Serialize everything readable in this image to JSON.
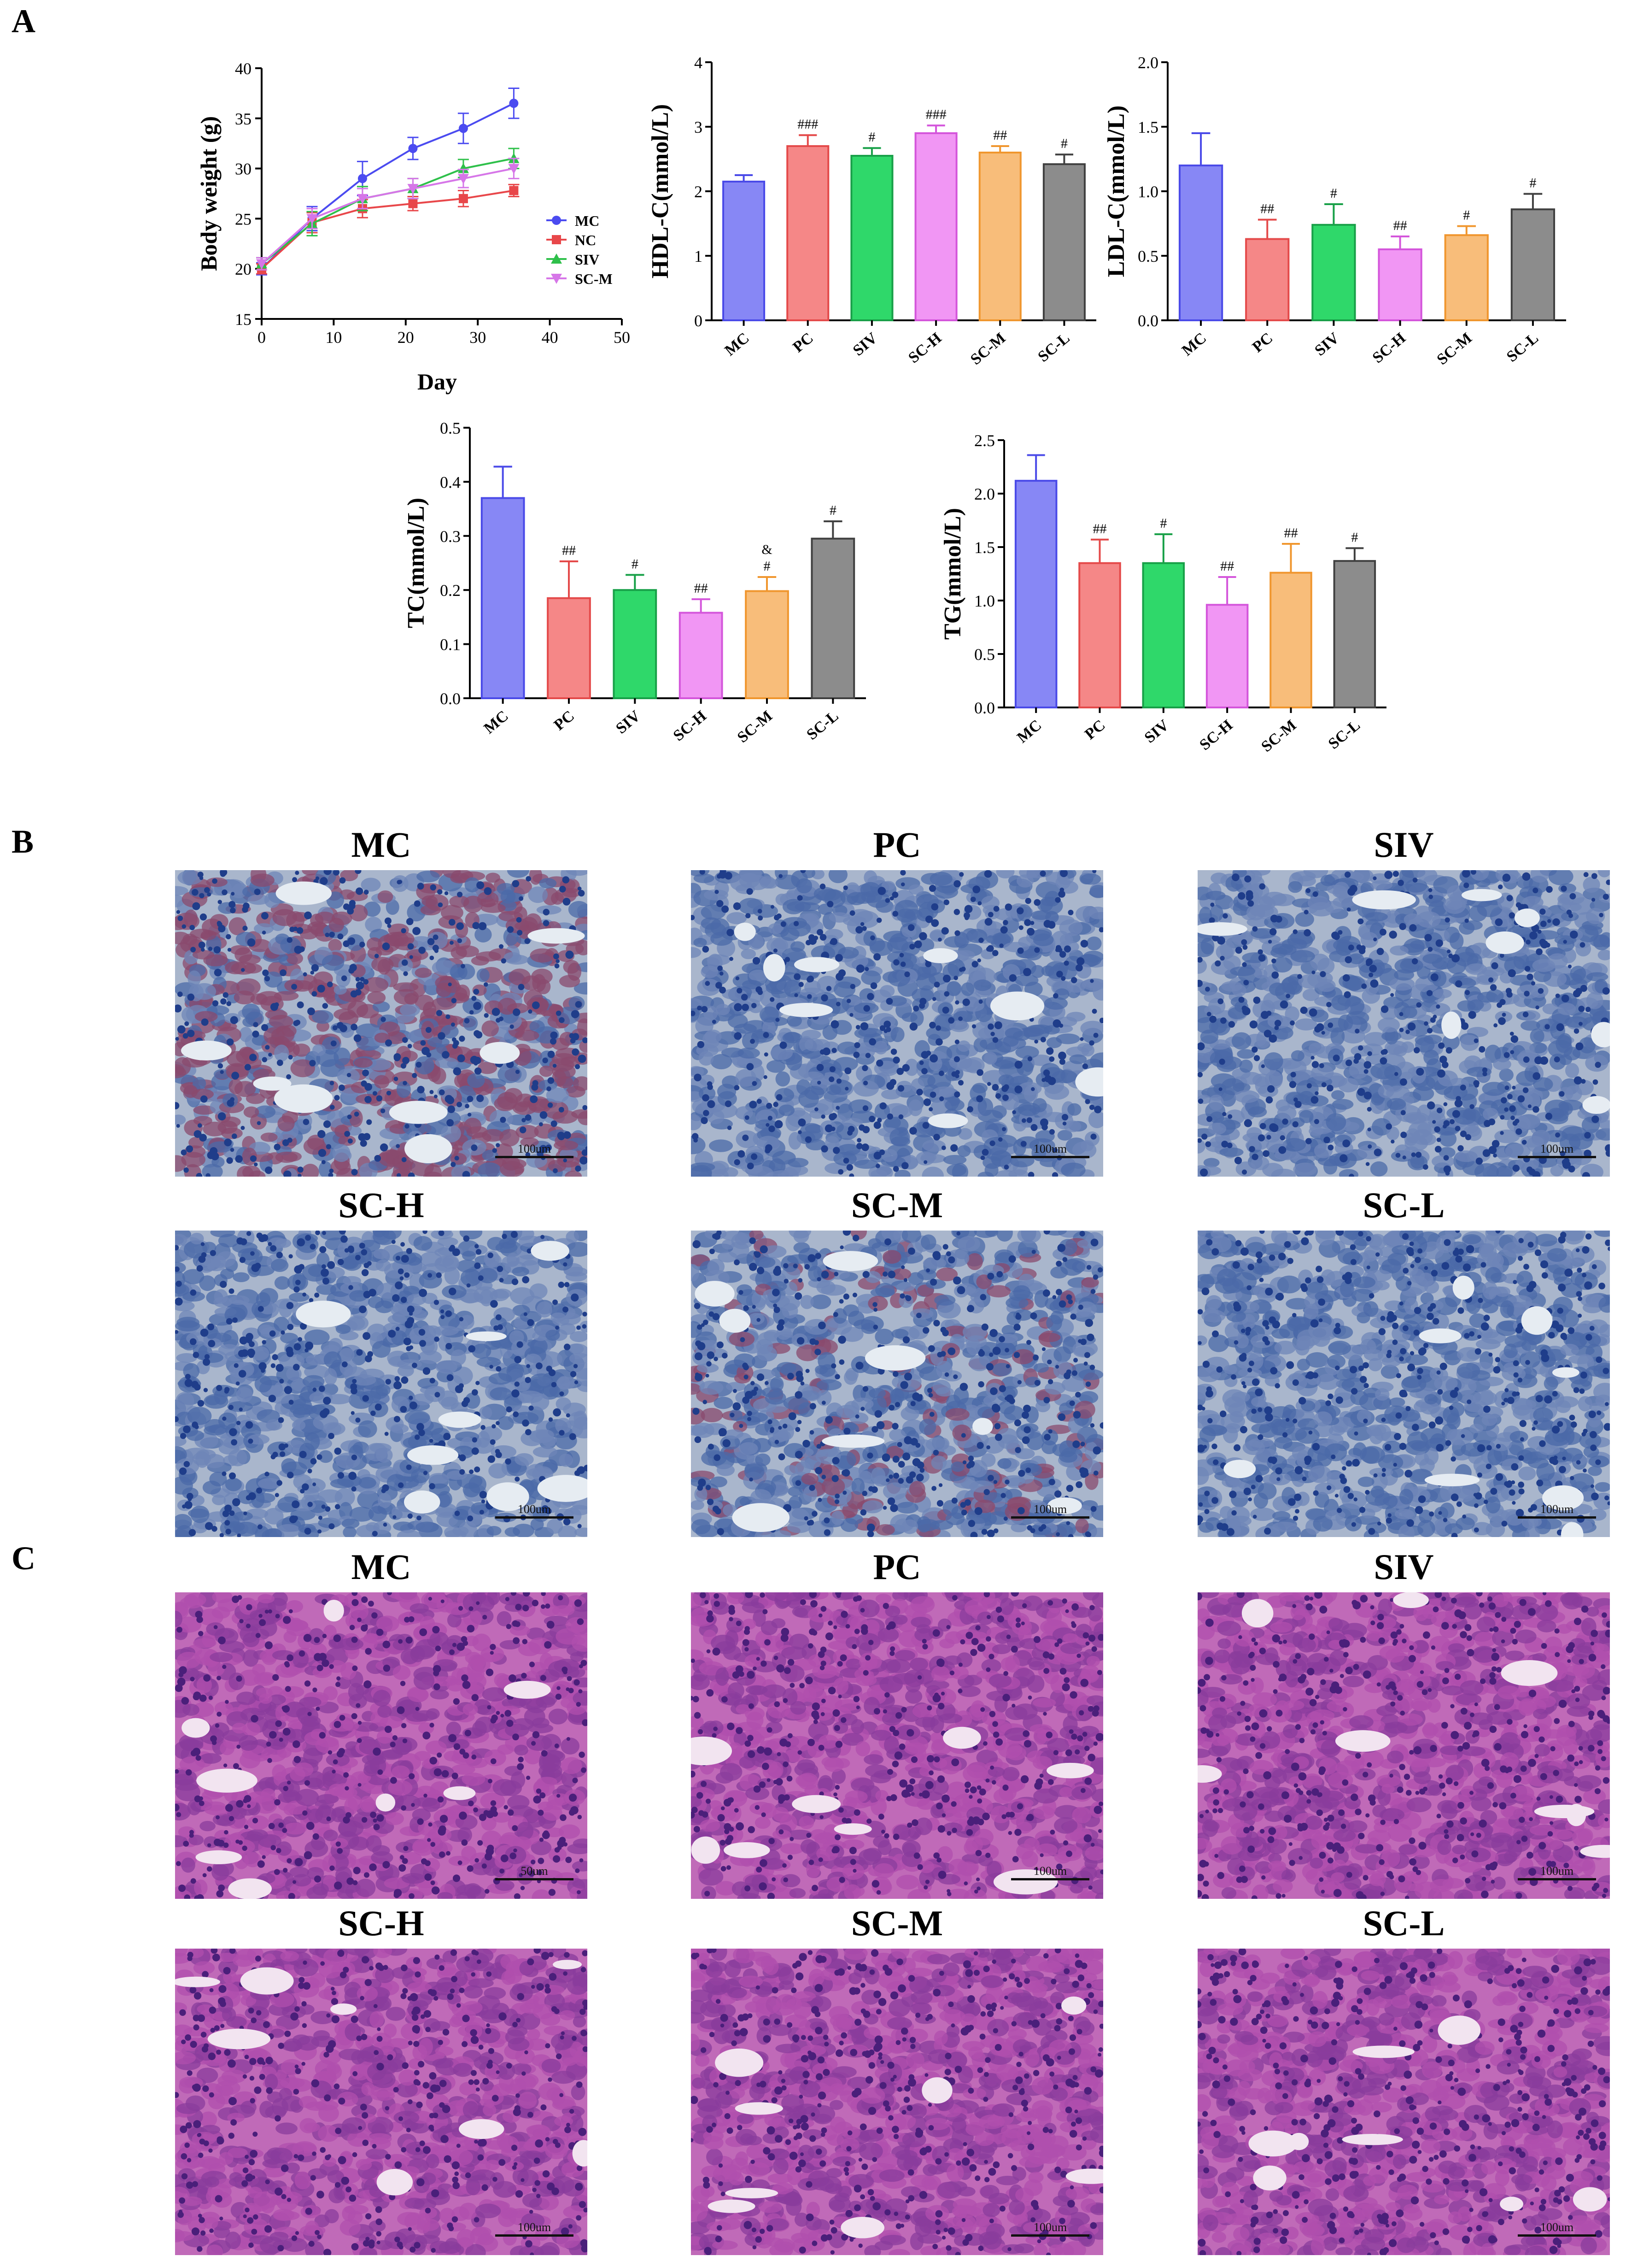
{
  "panels": {
    "a": "A",
    "b": "B",
    "c": "C"
  },
  "chart_data": [
    {
      "id": "body-weight",
      "type": "line",
      "xlabel": "Day",
      "ylabel": "Body weight (g)",
      "xlim": [
        0,
        50
      ],
      "ylim": [
        15,
        40
      ],
      "xticks": [
        0,
        10,
        20,
        30,
        40,
        50
      ],
      "yticks": [
        15,
        20,
        25,
        30,
        35,
        40
      ],
      "x": [
        0,
        7,
        14,
        21,
        28,
        35
      ],
      "legend_position": "right",
      "series": [
        {
          "name": "MC",
          "color": "#4b4bf0",
          "marker": "circle",
          "values": [
            20.0,
            25.0,
            29.0,
            32.0,
            34.0,
            36.5
          ],
          "errors": [
            0.6,
            1.2,
            1.7,
            1.1,
            1.5,
            1.5
          ]
        },
        {
          "name": "NC",
          "color": "#e8474a",
          "marker": "square",
          "values": [
            20.0,
            24.6,
            26.0,
            26.5,
            27.0,
            27.8
          ],
          "errors": [
            0.5,
            1.0,
            0.9,
            0.7,
            0.8,
            0.6
          ]
        },
        {
          "name": "SIV",
          "color": "#2ec04a",
          "marker": "triangle-up",
          "values": [
            20.5,
            24.5,
            27.0,
            28.0,
            30.0,
            31.0
          ],
          "errors": [
            0.6,
            1.2,
            1.2,
            1.0,
            0.9,
            1.0
          ]
        },
        {
          "name": "SC-M",
          "color": "#d676e8",
          "marker": "triangle-down",
          "values": [
            20.5,
            25.0,
            27.0,
            28.0,
            29.0,
            30.0
          ],
          "errors": [
            0.6,
            1.0,
            1.0,
            1.0,
            0.9,
            1.0
          ]
        }
      ]
    },
    {
      "id": "hdl",
      "type": "bar",
      "ylabel": "HDL-C(mmol/L)",
      "ylim": [
        0,
        4
      ],
      "yticks": [
        "0",
        "1",
        "2",
        "3",
        "4"
      ],
      "categories": [
        "MC",
        "PC",
        "SIV",
        "SC-H",
        "SC-M",
        "SC-L"
      ],
      "values": [
        2.15,
        2.7,
        2.55,
        2.9,
        2.6,
        2.42
      ],
      "errors": [
        0.1,
        0.17,
        0.12,
        0.12,
        0.1,
        0.15
      ],
      "annotations": [
        "",
        "###",
        "#",
        "###",
        "##",
        "#"
      ]
    },
    {
      "id": "ldl",
      "type": "bar",
      "ylabel": "LDL-C(mmol/L)",
      "ylim": [
        0,
        2.0
      ],
      "yticks": [
        "0.0",
        "0.5",
        "1.0",
        "1.5",
        "2.0"
      ],
      "categories": [
        "MC",
        "PC",
        "SIV",
        "SC-H",
        "SC-M",
        "SC-L"
      ],
      "values": [
        1.2,
        0.63,
        0.74,
        0.55,
        0.66,
        0.86
      ],
      "errors": [
        0.25,
        0.15,
        0.16,
        0.1,
        0.07,
        0.12
      ],
      "annotations": [
        "",
        "##",
        "#",
        "##",
        "#",
        "#"
      ]
    },
    {
      "id": "tc",
      "type": "bar",
      "ylabel": "TC(mmol/L)",
      "ylim": [
        0,
        0.5
      ],
      "yticks": [
        "0.0",
        "0.1",
        "0.2",
        "0.3",
        "0.4",
        "0.5"
      ],
      "categories": [
        "MC",
        "PC",
        "SIV",
        "SC-H",
        "SC-M",
        "SC-L"
      ],
      "values": [
        0.37,
        0.185,
        0.2,
        0.158,
        0.198,
        0.295
      ],
      "errors": [
        0.058,
        0.068,
        0.028,
        0.025,
        0.026,
        0.032
      ],
      "annotations": [
        "",
        "##",
        "#",
        "##",
        "#",
        "#"
      ],
      "annotations2": [
        "",
        "",
        "",
        "",
        "&",
        ""
      ]
    },
    {
      "id": "tg",
      "type": "bar",
      "ylabel": "TG(mmol/L)",
      "ylim": [
        0,
        2.5
      ],
      "yticks": [
        "0.0",
        "0.5",
        "1.0",
        "1.5",
        "2.0",
        "2.5"
      ],
      "categories": [
        "MC",
        "PC",
        "SIV",
        "SC-H",
        "SC-M",
        "SC-L"
      ],
      "values": [
        2.12,
        1.35,
        1.35,
        0.96,
        1.26,
        1.37
      ],
      "errors": [
        0.24,
        0.22,
        0.27,
        0.26,
        0.27,
        0.12
      ],
      "annotations": [
        "",
        "##",
        "#",
        "##",
        "##",
        "#"
      ]
    }
  ],
  "bar_colors": {
    "fill": [
      "#8787f5",
      "#f58787",
      "#2fd86a",
      "#f196f4",
      "#f8bd7a",
      "#8c8c8c"
    ],
    "stroke": [
      "#4a4ae8",
      "#e44a4a",
      "#18a048",
      "#d455db",
      "#f0962e",
      "#404040"
    ]
  },
  "oil_red": {
    "titles": [
      "MC",
      "PC",
      "SIV",
      "SC-H",
      "SC-M",
      "SC-L"
    ],
    "scales": [
      "100um",
      "100um",
      "100um",
      "100um",
      "100um",
      "100um"
    ]
  },
  "he_stain": {
    "titles": [
      "MC",
      "PC",
      "SIV",
      "SC-H",
      "SC-M",
      "SC-L"
    ],
    "scales": [
      "50um",
      "100um",
      "100um",
      "100um",
      "100um",
      "100um"
    ]
  }
}
